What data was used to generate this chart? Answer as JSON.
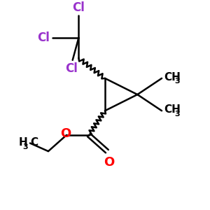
{
  "background_color": "#ffffff",
  "bond_color": "#000000",
  "cl_color": "#9932CC",
  "o_color": "#FF0000",
  "text_color": "#000000",
  "figsize": [
    3.0,
    3.0
  ],
  "dpi": 100,
  "xlim": [
    0,
    10
  ],
  "ylim": [
    0,
    10
  ]
}
